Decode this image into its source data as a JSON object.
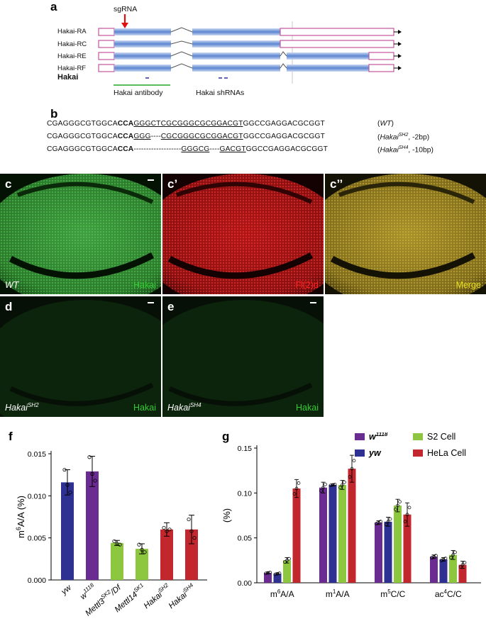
{
  "panels": {
    "a": "a",
    "b": "b",
    "c": "c",
    "c1": "c’",
    "c2": "c’’",
    "d": "d",
    "e": "e",
    "f": "f",
    "g": "g"
  },
  "gene_model": {
    "sgrna_label": "sgRNA",
    "isoforms": [
      "Hakai-RA",
      "Hakai-RC",
      "Hakai-RE",
      "Hakai-RF"
    ],
    "gene_label": "Hakai",
    "antibody_label": "Hakai antibody",
    "shrna_label": "Hakai shRNAs",
    "colors": {
      "exon": "#7fa3dd",
      "utr": "#c0569c",
      "arrow_sgrna": "#e01010",
      "antibody": "#27a327",
      "shrna": "#2a2aa8"
    }
  },
  "sequences": [
    {
      "parts": [
        {
          "t": "CGAGGGCGTGGCA",
          "s": ""
        },
        {
          "t": "CCA",
          "s": "b"
        },
        {
          "t": "GGGCTCGCGGGCGCGGACGT",
          "s": "u"
        },
        {
          "t": "GGCCGAGGACGCGGT",
          "s": ""
        }
      ],
      "note_pre": "(",
      "note_it": "WT",
      "note_sup": "",
      "note_post": ")"
    },
    {
      "parts": [
        {
          "t": "CGAGGGCGTGGCA",
          "s": ""
        },
        {
          "t": "CCA",
          "s": "b"
        },
        {
          "t": "GGG",
          "s": "u"
        },
        {
          "t": "----",
          "s": ""
        },
        {
          "t": "CGCGGGCGCGGACGT",
          "s": "u"
        },
        {
          "t": "GGCCGAGGACGCGGT",
          "s": ""
        }
      ],
      "note_pre": "(",
      "note_it": "Hakai",
      "note_sup": "SH2",
      "note_post": ", -2bp)"
    },
    {
      "parts": [
        {
          "t": "CGAGGGCGTGGCA",
          "s": ""
        },
        {
          "t": "CCA",
          "s": "b"
        },
        {
          "t": "-------------------",
          "s": ""
        },
        {
          "t": "GGGCG",
          "s": "u"
        },
        {
          "t": "----",
          "s": ""
        },
        {
          "t": "GACGT",
          "s": "u"
        },
        {
          "t": "GGCCGAGGACGCGGT",
          "s": ""
        }
      ],
      "note_pre": "(",
      "note_it": "Hakai",
      "note_sup": "SH4",
      "note_post": ", -10bp)"
    }
  ],
  "images": {
    "c_left": "WT",
    "c_right": "Hakai",
    "c1_right": "Fl(2)d",
    "c2_right": "Merge",
    "d_left": "Hakai",
    "d_left_sup": "SH2",
    "d_right": "Hakai",
    "e_left": "Hakai",
    "e_left_sup": "SH4",
    "e_right": "Hakai",
    "colors": {
      "green": "#33cc33",
      "red": "#ff2020",
      "yellow": "#e8e020"
    }
  },
  "chart_data": [
    {
      "type": "bar",
      "panel": "f",
      "ylabel": "m6A/A (%)",
      "ylim": [
        0,
        0.015
      ],
      "yticks": [
        "0.000",
        "0.005",
        "0.010",
        "0.015"
      ],
      "categories": [
        {
          "base": "yw",
          "sup": ""
        },
        {
          "base": "w",
          "sup": "1118"
        },
        {
          "base": "Mettl3",
          "sup": "SK2",
          "post": "/Df"
        },
        {
          "base": "Mettl14",
          "sup": "SK1"
        },
        {
          "base": "Hakai",
          "sup": "SH2"
        },
        {
          "base": "Hakai",
          "sup": "SH4"
        }
      ],
      "values": [
        0.0116,
        0.0129,
        0.0044,
        0.0037,
        0.006,
        0.006
      ],
      "errors": [
        0.0015,
        0.0018,
        0.0003,
        0.0006,
        0.0008,
        0.0017
      ],
      "points": [
        [
          0.0131,
          0.0113,
          0.0104
        ],
        [
          0.0146,
          0.0126,
          0.0118
        ],
        [
          0.0046,
          0.0043,
          0.0042
        ],
        [
          0.0042,
          0.0036,
          0.0033
        ],
        [
          0.0062,
          0.0058,
          0.006
        ],
        [
          0.0072,
          0.0058,
          0.005
        ]
      ],
      "colors": [
        "#2e3192",
        "#6a2c91",
        "#8dc63f",
        "#8dc63f",
        "#c1272d",
        "#c1272d"
      ]
    },
    {
      "type": "bar",
      "panel": "g",
      "ylabel": "(%)",
      "ylim": [
        0,
        0.15
      ],
      "yticks": [
        "0.00",
        "0.05",
        "0.10",
        "0.15"
      ],
      "categories": [
        {
          "pre": "m",
          "sup": "6",
          "base": "A/A"
        },
        {
          "pre": "m",
          "sup": "1",
          "base": "A/A"
        },
        {
          "pre": "m",
          "sup": "5",
          "base": "C/C"
        },
        {
          "pre": "ac",
          "sup": "4",
          "base": "C/C"
        }
      ],
      "series": [
        {
          "name": "w",
          "sup": "1118",
          "italic": true,
          "color": "#6a2c91",
          "values": [
            0.011,
            0.106,
            0.067,
            0.029
          ],
          "errors": [
            0.001,
            0.006,
            0.002,
            0.002
          ]
        },
        {
          "name": "yw",
          "sup": "",
          "italic": true,
          "color": "#2e3192",
          "values": [
            0.01,
            0.109,
            0.068,
            0.026
          ],
          "errors": [
            0.001,
            0.001,
            0.005,
            0.002
          ]
        },
        {
          "name": "S2 Cell",
          "sup": "",
          "italic": false,
          "color": "#8dc63f",
          "values": [
            0.025,
            0.109,
            0.086,
            0.031
          ],
          "errors": [
            0.003,
            0.005,
            0.007,
            0.005
          ]
        },
        {
          "name": "HeLa Cell",
          "sup": "",
          "italic": false,
          "color": "#c1272d",
          "values": [
            0.105,
            0.127,
            0.076,
            0.02
          ],
          "errors": [
            0.01,
            0.015,
            0.013,
            0.004
          ]
        }
      ]
    }
  ]
}
